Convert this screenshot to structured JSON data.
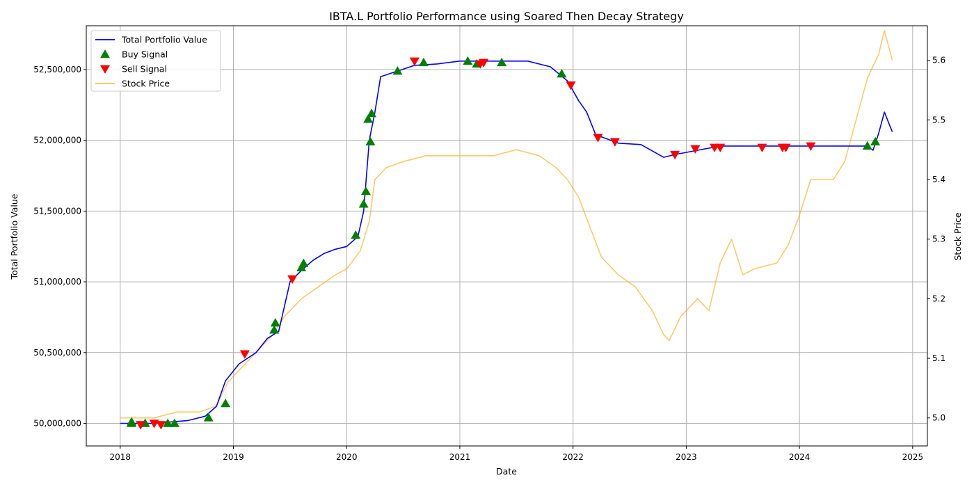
{
  "chart_data": {
    "type": "line",
    "title": "IBTA.L Portfolio Performance using Soared Then Decay Strategy",
    "xlabel": "Date",
    "ylabel": "Total Portfolio Value",
    "y2label": "Stock Price",
    "xlim": [
      2017.7,
      2025.13
    ],
    "ylim": [
      49840000,
      52810000
    ],
    "y2lim": [
      4.953,
      5.658
    ],
    "x_ticks": [
      2018,
      2019,
      2020,
      2021,
      2022,
      2023,
      2024,
      2025
    ],
    "x_tick_labels": [
      "2018",
      "2019",
      "2020",
      "2021",
      "2022",
      "2023",
      "2024",
      "2025"
    ],
    "y_ticks": [
      50000000,
      50500000,
      51000000,
      51500000,
      52000000,
      52500000
    ],
    "y_tick_labels": [
      "50,000,000",
      "50,500,000",
      "51,000,000",
      "51,500,000",
      "52,000,000",
      "52,500,000"
    ],
    "y2_ticks": [
      5.0,
      5.1,
      5.2,
      5.3,
      5.4,
      5.5,
      5.6
    ],
    "y2_tick_labels": [
      "5.0",
      "5.1",
      "5.2",
      "5.3",
      "5.4",
      "5.5",
      "5.6"
    ],
    "grid": true,
    "legend_position": "top-left",
    "colors": {
      "portfolio": "#0000ff",
      "stock": "#ffa500",
      "buy": "#008000",
      "sell": "#ff0000",
      "grid": "#b0b0b0",
      "axes": "#000000"
    },
    "legend": [
      {
        "label": "Total Portfolio Value",
        "kind": "line",
        "color": "#0000ff"
      },
      {
        "label": "Buy Signal",
        "kind": "triangle-up",
        "color": "#008000"
      },
      {
        "label": "Sell Signal",
        "kind": "triangle-down",
        "color": "#ff0000"
      },
      {
        "label": "Stock Price",
        "kind": "line",
        "color": "#ffa500"
      }
    ],
    "series": [
      {
        "name": "Total Portfolio Value",
        "axis": "left",
        "points": [
          [
            2018.0,
            50000000
          ],
          [
            2018.3,
            50000000
          ],
          [
            2018.6,
            50020000
          ],
          [
            2018.75,
            50050000
          ],
          [
            2018.85,
            50120000
          ],
          [
            2018.93,
            50300000
          ],
          [
            2019.05,
            50420000
          ],
          [
            2019.2,
            50500000
          ],
          [
            2019.3,
            50600000
          ],
          [
            2019.4,
            50650000
          ],
          [
            2019.5,
            51000000
          ],
          [
            2019.6,
            51080000
          ],
          [
            2019.7,
            51150000
          ],
          [
            2019.8,
            51200000
          ],
          [
            2019.9,
            51230000
          ],
          [
            2020.0,
            51250000
          ],
          [
            2020.1,
            51320000
          ],
          [
            2020.15,
            51500000
          ],
          [
            2020.2,
            52000000
          ],
          [
            2020.25,
            52200000
          ],
          [
            2020.3,
            52450000
          ],
          [
            2020.45,
            52490000
          ],
          [
            2020.6,
            52530000
          ],
          [
            2020.8,
            52540000
          ],
          [
            2021.0,
            52560000
          ],
          [
            2021.2,
            52560000
          ],
          [
            2021.4,
            52560000
          ],
          [
            2021.6,
            52560000
          ],
          [
            2021.8,
            52520000
          ],
          [
            2021.95,
            52420000
          ],
          [
            2022.05,
            52280000
          ],
          [
            2022.12,
            52200000
          ],
          [
            2022.2,
            52040000
          ],
          [
            2022.4,
            51980000
          ],
          [
            2022.6,
            51970000
          ],
          [
            2022.8,
            51880000
          ],
          [
            2022.9,
            51900000
          ],
          [
            2023.1,
            51930000
          ],
          [
            2023.3,
            51960000
          ],
          [
            2023.6,
            51960000
          ],
          [
            2024.0,
            51960000
          ],
          [
            2024.4,
            51960000
          ],
          [
            2024.6,
            51960000
          ],
          [
            2024.65,
            51930000
          ],
          [
            2024.7,
            52050000
          ],
          [
            2024.75,
            52200000
          ],
          [
            2024.8,
            52100000
          ],
          [
            2024.82,
            52060000
          ]
        ]
      },
      {
        "name": "Stock Price",
        "axis": "right",
        "points": [
          [
            2018.0,
            5.0
          ],
          [
            2018.3,
            5.0
          ],
          [
            2018.5,
            5.01
          ],
          [
            2018.7,
            5.01
          ],
          [
            2018.85,
            5.02
          ],
          [
            2018.95,
            5.06
          ],
          [
            2019.05,
            5.08
          ],
          [
            2019.2,
            5.11
          ],
          [
            2019.35,
            5.14
          ],
          [
            2019.45,
            5.17
          ],
          [
            2019.6,
            5.2
          ],
          [
            2019.75,
            5.22
          ],
          [
            2019.9,
            5.24
          ],
          [
            2020.0,
            5.25
          ],
          [
            2020.12,
            5.28
          ],
          [
            2020.2,
            5.33
          ],
          [
            2020.25,
            5.4
          ],
          [
            2020.35,
            5.42
          ],
          [
            2020.5,
            5.43
          ],
          [
            2020.7,
            5.44
          ],
          [
            2020.9,
            5.44
          ],
          [
            2021.1,
            5.44
          ],
          [
            2021.3,
            5.44
          ],
          [
            2021.5,
            5.45
          ],
          [
            2021.7,
            5.44
          ],
          [
            2021.85,
            5.42
          ],
          [
            2021.95,
            5.4
          ],
          [
            2022.05,
            5.37
          ],
          [
            2022.15,
            5.32
          ],
          [
            2022.25,
            5.27
          ],
          [
            2022.4,
            5.24
          ],
          [
            2022.55,
            5.22
          ],
          [
            2022.7,
            5.18
          ],
          [
            2022.8,
            5.14
          ],
          [
            2022.85,
            5.13
          ],
          [
            2022.95,
            5.17
          ],
          [
            2023.1,
            5.2
          ],
          [
            2023.2,
            5.18
          ],
          [
            2023.3,
            5.26
          ],
          [
            2023.4,
            5.3
          ],
          [
            2023.5,
            5.24
          ],
          [
            2023.6,
            5.25
          ],
          [
            2023.8,
            5.26
          ],
          [
            2023.9,
            5.29
          ],
          [
            2024.0,
            5.34
          ],
          [
            2024.1,
            5.4
          ],
          [
            2024.3,
            5.4
          ],
          [
            2024.4,
            5.43
          ],
          [
            2024.5,
            5.5
          ],
          [
            2024.6,
            5.57
          ],
          [
            2024.7,
            5.61
          ],
          [
            2024.75,
            5.65
          ],
          [
            2024.82,
            5.6
          ]
        ]
      }
    ],
    "buy_signals": [
      [
        2018.1,
        50000000
      ],
      [
        2018.1,
        50010000
      ],
      [
        2018.22,
        50000000
      ],
      [
        2018.42,
        50000000
      ],
      [
        2018.48,
        50000000
      ],
      [
        2018.78,
        50040000
      ],
      [
        2018.93,
        50140000
      ],
      [
        2019.36,
        50660000
      ],
      [
        2019.37,
        50710000
      ],
      [
        2019.6,
        51100000
      ],
      [
        2019.62,
        51130000
      ],
      [
        2020.08,
        51330000
      ],
      [
        2020.15,
        51550000
      ],
      [
        2020.17,
        51640000
      ],
      [
        2020.19,
        52150000
      ],
      [
        2020.21,
        51990000
      ],
      [
        2020.22,
        52190000
      ],
      [
        2020.45,
        52490000
      ],
      [
        2020.68,
        52550000
      ],
      [
        2021.07,
        52560000
      ],
      [
        2021.15,
        52540000
      ],
      [
        2021.37,
        52550000
      ],
      [
        2021.9,
        52470000
      ],
      [
        2024.6,
        51960000
      ],
      [
        2024.67,
        51990000
      ]
    ],
    "sell_signals": [
      [
        2018.18,
        49990000
      ],
      [
        2018.3,
        50000000
      ],
      [
        2018.36,
        49990000
      ],
      [
        2019.1,
        50490000
      ],
      [
        2019.52,
        51020000
      ],
      [
        2020.6,
        52560000
      ],
      [
        2021.18,
        52540000
      ],
      [
        2021.21,
        52550000
      ],
      [
        2021.98,
        52390000
      ],
      [
        2022.22,
        52020000
      ],
      [
        2022.37,
        51990000
      ],
      [
        2022.9,
        51900000
      ],
      [
        2023.08,
        51940000
      ],
      [
        2023.25,
        51950000
      ],
      [
        2023.3,
        51950000
      ],
      [
        2023.67,
        51950000
      ],
      [
        2023.85,
        51950000
      ],
      [
        2023.88,
        51950000
      ],
      [
        2024.1,
        51960000
      ]
    ]
  }
}
